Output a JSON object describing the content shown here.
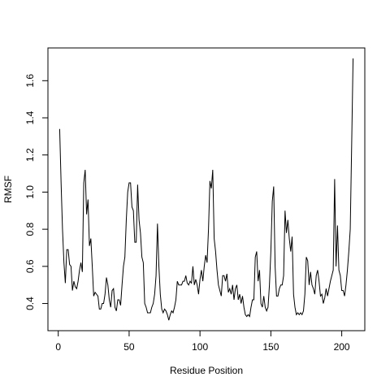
{
  "chart_data": {
    "type": "line",
    "x_label": "Residue Position",
    "y_label": "RMSF",
    "x": [
      1,
      2,
      3,
      4,
      5,
      6,
      7,
      8,
      9,
      10,
      11,
      12,
      13,
      14,
      15,
      16,
      17,
      18,
      19,
      20,
      21,
      22,
      23,
      24,
      25,
      26,
      27,
      28,
      29,
      30,
      31,
      32,
      33,
      34,
      35,
      36,
      37,
      38,
      39,
      40,
      41,
      42,
      43,
      44,
      45,
      46,
      47,
      48,
      49,
      50,
      51,
      52,
      53,
      54,
      55,
      56,
      57,
      58,
      59,
      60,
      61,
      62,
      63,
      64,
      65,
      66,
      67,
      68,
      69,
      70,
      71,
      72,
      73,
      74,
      75,
      76,
      77,
      78,
      79,
      80,
      81,
      82,
      83,
      84,
      85,
      86,
      87,
      88,
      89,
      90,
      91,
      92,
      93,
      94,
      95,
      96,
      97,
      98,
      99,
      100,
      101,
      102,
      103,
      104,
      105,
      106,
      107,
      108,
      109,
      110,
      111,
      112,
      113,
      114,
      115,
      116,
      117,
      118,
      119,
      120,
      121,
      122,
      123,
      124,
      125,
      126,
      127,
      128,
      129,
      130,
      131,
      132,
      133,
      134,
      135,
      136,
      137,
      138,
      139,
      140,
      141,
      142,
      143,
      144,
      145,
      146,
      147,
      148,
      149,
      150,
      151,
      152,
      153,
      154,
      155,
      156,
      157,
      158,
      159,
      160,
      161,
      162,
      163,
      164,
      165,
      166,
      167,
      168,
      169,
      170,
      171,
      172,
      173,
      174,
      175,
      176,
      177,
      178,
      179,
      180,
      181,
      182,
      183,
      184,
      185,
      186,
      187,
      188,
      189,
      190,
      191,
      192,
      193,
      194,
      195,
      196,
      197,
      198,
      199,
      200,
      201,
      202,
      203,
      204,
      205,
      206,
      207,
      208
    ],
    "values": [
      1.34,
      1.05,
      0.8,
      0.62,
      0.51,
      0.69,
      0.69,
      0.61,
      0.6,
      0.47,
      0.52,
      0.49,
      0.48,
      0.52,
      0.58,
      0.62,
      0.57,
      1.05,
      1.12,
      0.88,
      0.96,
      0.71,
      0.75,
      0.6,
      0.44,
      0.46,
      0.45,
      0.44,
      0.37,
      0.37,
      0.4,
      0.4,
      0.45,
      0.54,
      0.5,
      0.42,
      0.38,
      0.47,
      0.48,
      0.38,
      0.36,
      0.42,
      0.42,
      0.39,
      0.5,
      0.6,
      0.65,
      0.85,
      1.0,
      1.05,
      1.05,
      0.92,
      0.9,
      0.73,
      0.73,
      1.04,
      0.85,
      0.78,
      0.65,
      0.62,
      0.4,
      0.38,
      0.35,
      0.35,
      0.35,
      0.38,
      0.4,
      0.45,
      0.55,
      0.83,
      0.6,
      0.45,
      0.37,
      0.35,
      0.37,
      0.36,
      0.34,
      0.31,
      0.34,
      0.36,
      0.35,
      0.38,
      0.42,
      0.52,
      0.5,
      0.5,
      0.5,
      0.52,
      0.52,
      0.55,
      0.51,
      0.5,
      0.52,
      0.51,
      0.6,
      0.5,
      0.53,
      0.5,
      0.45,
      0.53,
      0.58,
      0.52,
      0.6,
      0.66,
      0.62,
      0.8,
      1.06,
      1.02,
      1.12,
      0.75,
      0.68,
      0.58,
      0.5,
      0.47,
      0.44,
      0.55,
      0.55,
      0.52,
      0.56,
      0.46,
      0.48,
      0.45,
      0.5,
      0.42,
      0.48,
      0.5,
      0.42,
      0.45,
      0.4,
      0.44,
      0.38,
      0.34,
      0.33,
      0.34,
      0.33,
      0.38,
      0.42,
      0.42,
      0.65,
      0.68,
      0.52,
      0.58,
      0.4,
      0.38,
      0.44,
      0.38,
      0.36,
      0.38,
      0.5,
      0.68,
      0.95,
      1.03,
      0.6,
      0.44,
      0.44,
      0.48,
      0.5,
      0.5,
      0.55,
      0.9,
      0.78,
      0.85,
      0.75,
      0.68,
      0.76,
      0.45,
      0.38,
      0.34,
      0.35,
      0.34,
      0.35,
      0.34,
      0.36,
      0.45,
      0.65,
      0.63,
      0.5,
      0.57,
      0.5,
      0.48,
      0.45,
      0.55,
      0.58,
      0.52,
      0.44,
      0.45,
      0.4,
      0.43,
      0.48,
      0.44,
      0.48,
      0.52,
      0.55,
      0.58,
      1.07,
      0.6,
      0.82,
      0.58,
      0.55,
      0.47,
      0.47,
      0.44,
      0.5,
      0.58,
      0.68,
      0.8,
      1.25,
      1.72
    ],
    "color": "#000000",
    "xlim": [
      -7.28,
      216.28
    ],
    "ylim": [
      0.2536,
      1.7764
    ],
    "xticks": [
      0,
      50,
      100,
      150,
      200
    ],
    "yticks": [
      0.4,
      0.6,
      0.8,
      {
        "value": 1,
        "label": "1.0"
      },
      1.2,
      1.4,
      1.6
    ]
  }
}
